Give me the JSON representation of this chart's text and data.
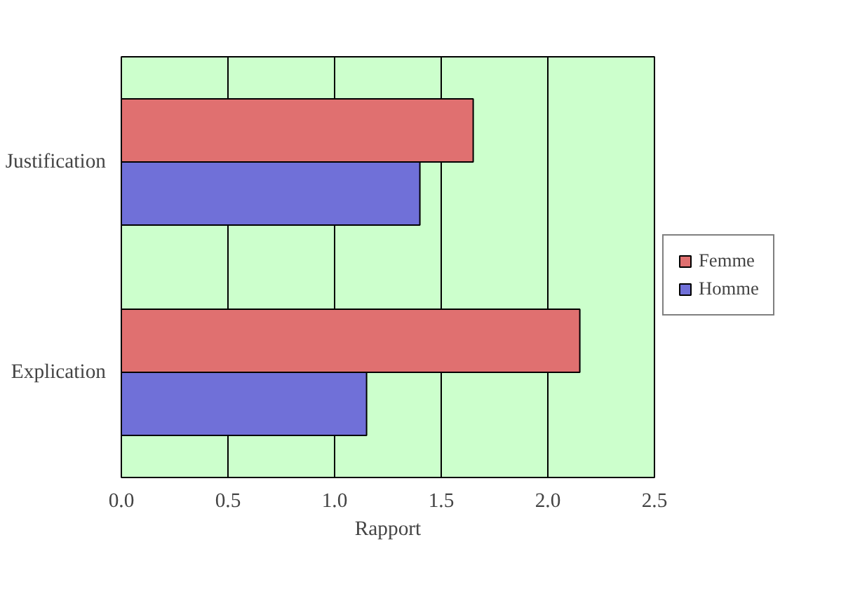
{
  "chart_data": {
    "type": "bar",
    "orientation": "horizontal",
    "xlabel": "Rapport",
    "categories": [
      "Justification",
      "Explication"
    ],
    "series": [
      {
        "name": "Femme",
        "color": "#e07070",
        "values": [
          1.65,
          2.15
        ]
      },
      {
        "name": "Homme",
        "color": "#7070d8",
        "values": [
          1.4,
          1.15
        ]
      }
    ],
    "xlim": [
      0,
      2.5
    ],
    "xticks": [
      {
        "value": 0,
        "label": "0.0"
      },
      {
        "value": 0.5,
        "label": "0.5"
      },
      {
        "value": 1,
        "label": "1.0"
      },
      {
        "value": 1.5,
        "label": "1.5"
      },
      {
        "value": 2,
        "label": "2.0"
      },
      {
        "value": 2.5,
        "label": "2.5"
      }
    ],
    "grid": "x",
    "legend": "right"
  }
}
